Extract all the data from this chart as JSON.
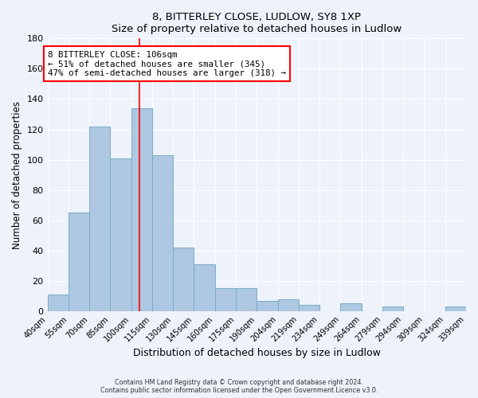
{
  "title": "8, BITTERLEY CLOSE, LUDLOW, SY8 1XP",
  "subtitle": "Size of property relative to detached houses in Ludlow",
  "xlabel": "Distribution of detached houses by size in Ludlow",
  "ylabel": "Number of detached properties",
  "bar_labels": [
    "40sqm",
    "55sqm",
    "70sqm",
    "85sqm",
    "100sqm",
    "115sqm",
    "130sqm",
    "145sqm",
    "160sqm",
    "175sqm",
    "190sqm",
    "204sqm",
    "219sqm",
    "234sqm",
    "249sqm",
    "264sqm",
    "279sqm",
    "294sqm",
    "309sqm",
    "324sqm",
    "339sqm"
  ],
  "bar_values": [
    11,
    65,
    122,
    101,
    134,
    103,
    42,
    31,
    15,
    15,
    7,
    8,
    4,
    0,
    5,
    0,
    3,
    0,
    0,
    3
  ],
  "bar_color": "#adc8e0",
  "bar_edge_color": "#7aaac8",
  "ylim": [
    0,
    180
  ],
  "yticks": [
    0,
    20,
    40,
    60,
    80,
    100,
    120,
    140,
    160,
    180
  ],
  "marker_label": "8 BITTERLEY CLOSE: 106sqm",
  "annotation_line1": "← 51% of detached houses are smaller (345)",
  "annotation_line2": "47% of semi-detached houses are larger (318) →",
  "footer1": "Contains HM Land Registry data © Crown copyright and database right 2024.",
  "footer2": "Contains public sector information licensed under the Open Government Licence v3.0.",
  "bg_color": "#eef2fb",
  "plot_bg_color": "#eef2fb",
  "grid_color": "#ffffff"
}
